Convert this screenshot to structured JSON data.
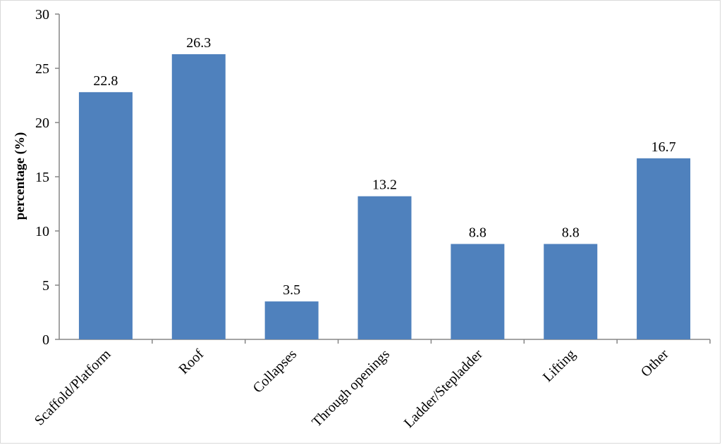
{
  "chart_data": {
    "type": "bar",
    "categories": [
      "Scaffold/Platform",
      "Roof",
      "Collapses",
      "Through openings",
      "Ladder/Stepladder",
      "Lifting",
      "Other"
    ],
    "values": [
      22.8,
      26.3,
      3.5,
      13.2,
      8.8,
      8.8,
      16.7
    ],
    "data_labels": [
      "22.8",
      "26.3",
      "3.5",
      "13.2",
      "8.8",
      "8.8",
      "16.7"
    ],
    "title": "",
    "xlabel": "",
    "ylabel": "percentage (%)",
    "ylim": [
      0,
      30
    ],
    "yticks": [
      0,
      5,
      10,
      15,
      20,
      25,
      30
    ],
    "grid": false,
    "legend": "none",
    "bar_color": "#4f81bd"
  }
}
